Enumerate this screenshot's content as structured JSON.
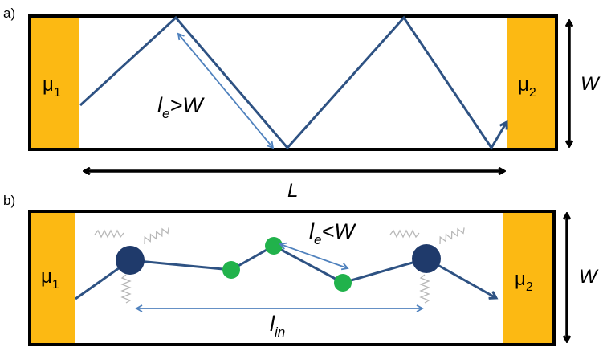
{
  "panel_a": {
    "label": "a)",
    "left_reservoir": "μ",
    "left_reservoir_sub": "1",
    "right_reservoir": "μ",
    "right_reservoir_sub": "2",
    "mean_free_path_symbol": "l",
    "mean_free_path_sub": "e",
    "mean_free_path_relation": ">W",
    "width_label": "W",
    "length_label": "L"
  },
  "panel_b": {
    "label": "b)",
    "left_reservoir": "μ",
    "left_reservoir_sub": "1",
    "right_reservoir": "μ",
    "right_reservoir_sub": "2",
    "mean_free_path_symbol": "l",
    "mean_free_path_sub": "e",
    "mean_free_path_relation": "<W",
    "width_label": "W",
    "inelastic_length_symbol": "l",
    "inelastic_length_sub": "in"
  },
  "colors": {
    "reservoir": "#fcb913",
    "trajectory": "#2e5283",
    "dimension_arrow": "#4f81bd",
    "large_scatterer": "#1f3a6b",
    "impurity": "#21b24b",
    "outline": "#000000"
  }
}
